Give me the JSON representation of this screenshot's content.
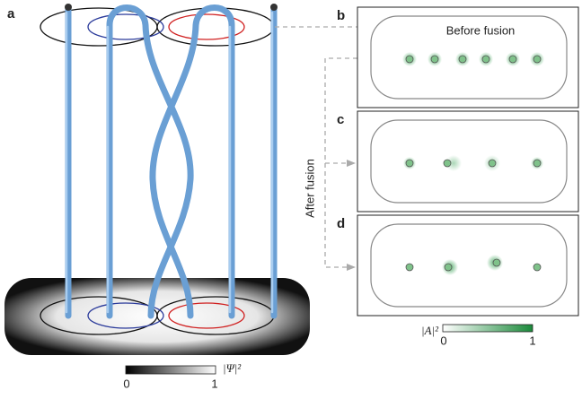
{
  "panels": {
    "a": {
      "label": "a",
      "colorbar": {
        "label": "|Ψ|²",
        "min": "0",
        "max": "1"
      }
    },
    "b": {
      "label": "b",
      "title": "Before fusion"
    },
    "c": {
      "label": "c"
    },
    "d": {
      "label": "d"
    },
    "side_label": "After fusion",
    "colorbar": {
      "label": "|A|²",
      "min": "0",
      "max": "1"
    }
  }
}
